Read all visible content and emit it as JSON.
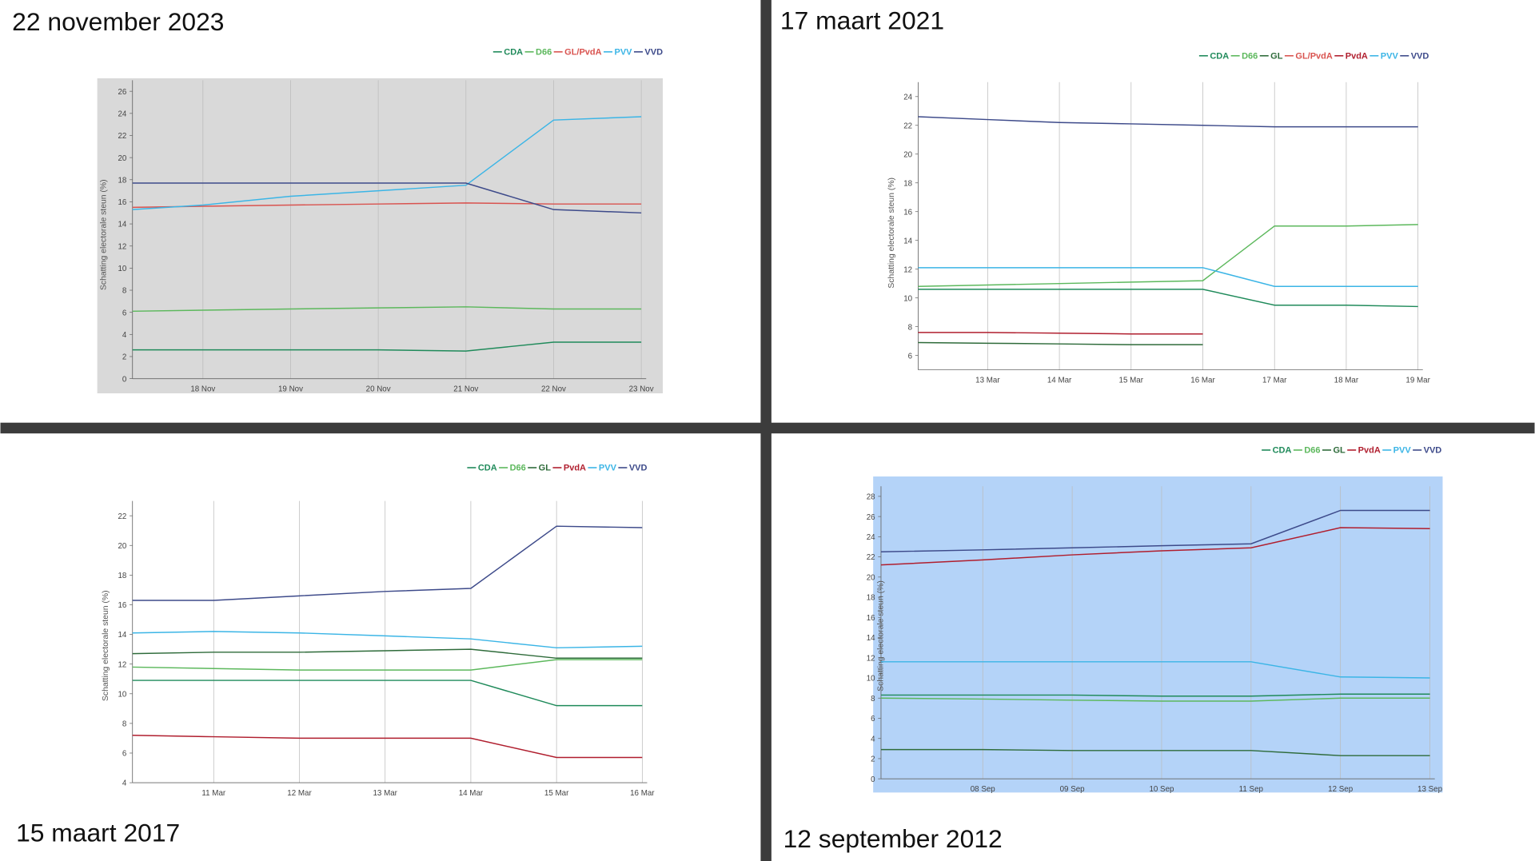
{
  "chart_data": [
    {
      "type": "line",
      "title": "22 november 2023",
      "y_label": "Schatting electorale steun (%)",
      "categories": [
        null,
        "18 Nov",
        "19 Nov",
        "20 Nov",
        "21 Nov",
        "22 Nov",
        "23 Nov"
      ],
      "series": [
        {
          "name": "CDA",
          "color": "#1f8a5a",
          "values": [
            2.6,
            2.6,
            2.6,
            2.6,
            2.5,
            3.3,
            3.3
          ]
        },
        {
          "name": "D66",
          "color": "#5cb85c",
          "values": [
            6.1,
            6.2,
            6.3,
            6.4,
            6.5,
            6.3,
            6.3
          ]
        },
        {
          "name": "GL/PvdA",
          "color": "#d9534f",
          "values": [
            15.5,
            15.6,
            15.7,
            15.8,
            15.9,
            15.8,
            15.8
          ]
        },
        {
          "name": "PVV",
          "color": "#3bb5e6",
          "values": [
            15.3,
            15.7,
            16.5,
            17.0,
            17.5,
            23.4,
            23.7
          ]
        },
        {
          "name": "VVD",
          "color": "#3d4a8a",
          "values": [
            17.7,
            17.7,
            17.7,
            17.7,
            17.7,
            15.3,
            15.0
          ]
        }
      ],
      "ylim": [
        0,
        27
      ],
      "yticks": [
        0,
        2,
        4,
        6,
        8,
        10,
        12,
        14,
        16,
        18,
        20,
        22,
        24,
        26
      ],
      "background": "#d9d9d9"
    },
    {
      "type": "line",
      "title": "17 maart 2021",
      "y_label": "Schatting electorale steun (%)",
      "categories": [
        null,
        "13 Mar",
        "14 Mar",
        "15 Mar",
        "16 Mar",
        "17 Mar",
        "18 Mar",
        "19 Mar"
      ],
      "series": [
        {
          "name": "CDA",
          "color": "#1f8a5a",
          "values": [
            10.6,
            10.6,
            10.6,
            10.6,
            10.6,
            9.5,
            9.5,
            9.4
          ]
        },
        {
          "name": "D66",
          "color": "#5cb85c",
          "values": [
            10.8,
            10.9,
            11.0,
            11.1,
            11.2,
            15.0,
            15.0,
            15.1
          ]
        },
        {
          "name": "GL",
          "color": "#2e6b3a",
          "values": [
            6.9,
            6.85,
            6.8,
            6.75,
            6.75,
            null,
            null,
            null
          ]
        },
        {
          "name": "GL/PvdA",
          "color": "#d9534f",
          "values": [
            null,
            null,
            null,
            null,
            null,
            null,
            null,
            null
          ]
        },
        {
          "name": "PvdA",
          "color": "#b01e2e",
          "values": [
            7.6,
            7.6,
            7.55,
            7.5,
            7.5,
            null,
            null,
            null
          ]
        },
        {
          "name": "PVV",
          "color": "#3bb5e6",
          "values": [
            12.1,
            12.1,
            12.1,
            12.1,
            12.1,
            10.8,
            10.8,
            10.8
          ]
        },
        {
          "name": "VVD",
          "color": "#3d4a8a",
          "values": [
            22.6,
            22.4,
            22.2,
            22.1,
            22.0,
            21.9,
            21.9,
            21.9
          ]
        }
      ],
      "ylim": [
        5,
        25
      ],
      "yticks": [
        6,
        8,
        10,
        12,
        14,
        16,
        18,
        20,
        22,
        24
      ]
    },
    {
      "type": "line",
      "title": "15 maart 2017",
      "y_label": "Schatting electorale steun (%)",
      "categories": [
        null,
        "11 Mar",
        "12 Mar",
        "13 Mar",
        "14 Mar",
        "15 Mar",
        "16 Mar"
      ],
      "series": [
        {
          "name": "CDA",
          "color": "#1f8a5a",
          "values": [
            10.9,
            10.9,
            10.9,
            10.9,
            10.9,
            9.2,
            9.2
          ]
        },
        {
          "name": "D66",
          "color": "#5cb85c",
          "values": [
            11.8,
            11.7,
            11.6,
            11.6,
            11.6,
            12.3,
            12.3
          ]
        },
        {
          "name": "GL",
          "color": "#2e6b3a",
          "values": [
            12.7,
            12.8,
            12.8,
            12.9,
            13.0,
            12.4,
            12.4
          ]
        },
        {
          "name": "PvdA",
          "color": "#b01e2e",
          "values": [
            7.2,
            7.1,
            7.0,
            7.0,
            7.0,
            5.7,
            5.7
          ]
        },
        {
          "name": "PVV",
          "color": "#3bb5e6",
          "values": [
            14.1,
            14.2,
            14.1,
            13.9,
            13.7,
            13.1,
            13.2
          ]
        },
        {
          "name": "VVD",
          "color": "#3d4a8a",
          "values": [
            16.3,
            16.3,
            16.6,
            16.9,
            17.1,
            21.3,
            21.2
          ]
        }
      ],
      "ylim": [
        4,
        23
      ],
      "yticks": [
        4,
        6,
        8,
        10,
        12,
        14,
        16,
        18,
        20,
        22
      ]
    },
    {
      "type": "line",
      "title": "12 september 2012",
      "y_label": "Schatting electorale steun (%)",
      "categories": [
        null,
        "08 Sep",
        "09 Sep",
        "10 Sep",
        "11 Sep",
        "12 Sep",
        "13 Sep"
      ],
      "series": [
        {
          "name": "CDA",
          "color": "#1f8a5a",
          "values": [
            8.3,
            8.3,
            8.3,
            8.2,
            8.2,
            8.4,
            8.4
          ]
        },
        {
          "name": "D66",
          "color": "#5cb85c",
          "values": [
            8.0,
            7.9,
            7.8,
            7.7,
            7.7,
            8.0,
            8.0
          ]
        },
        {
          "name": "GL",
          "color": "#2e6b3a",
          "values": [
            2.9,
            2.9,
            2.8,
            2.8,
            2.8,
            2.3,
            2.3
          ]
        },
        {
          "name": "PvdA",
          "color": "#b01e2e",
          "values": [
            21.2,
            21.7,
            22.2,
            22.6,
            22.9,
            24.9,
            24.8
          ]
        },
        {
          "name": "PVV",
          "color": "#3bb5e6",
          "values": [
            11.6,
            11.6,
            11.6,
            11.6,
            11.6,
            10.1,
            10.0
          ]
        },
        {
          "name": "VVD",
          "color": "#3d4a8a",
          "values": [
            22.5,
            22.7,
            22.9,
            23.1,
            23.3,
            26.6,
            26.6
          ]
        }
      ],
      "ylim": [
        0,
        29
      ],
      "yticks": [
        0,
        2,
        4,
        6,
        8,
        10,
        12,
        14,
        16,
        18,
        20,
        22,
        24,
        26,
        28
      ],
      "background": "#b4d3f8"
    }
  ]
}
